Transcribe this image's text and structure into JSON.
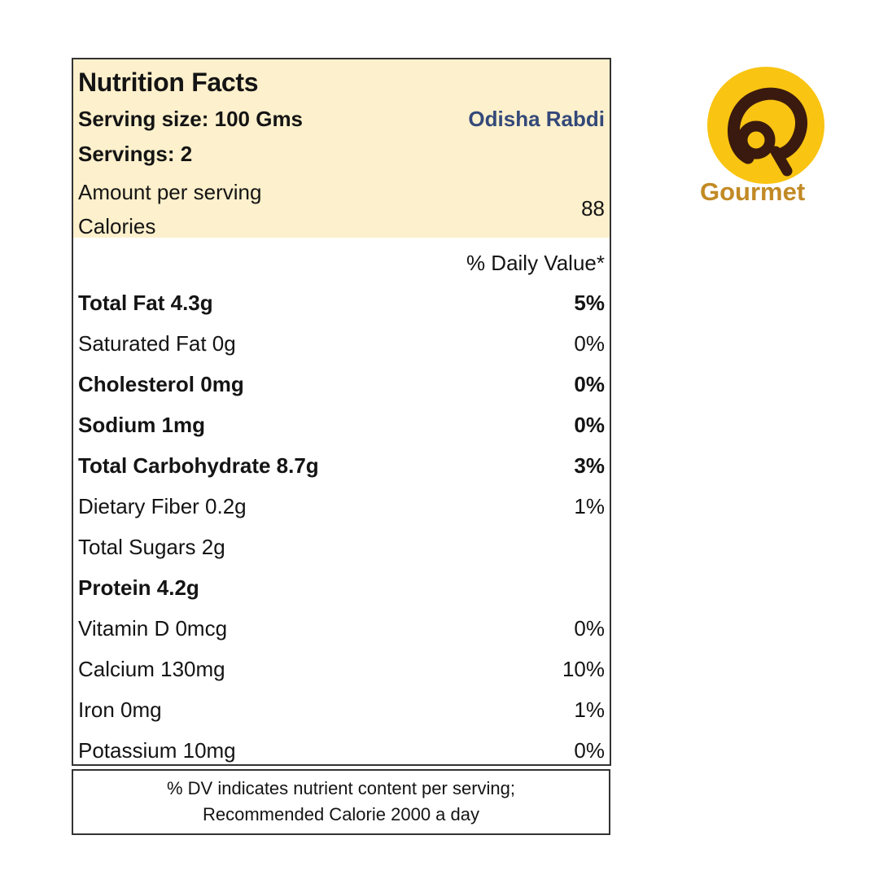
{
  "label": {
    "title": "Nutrition Facts",
    "serving_size": "Serving size: 100 Gms",
    "product_name": "Odisha Rabdi",
    "servings": "Servings: 2",
    "amount_per_serving": "Amount per serving",
    "calories_label": "Calories",
    "calories_value": "88",
    "daily_value_header": "% Daily Value*",
    "nutrients": [
      {
        "name": "Total Fat 4.3g",
        "dv": "5%",
        "bold": true
      },
      {
        "name": "Saturated Fat 0g",
        "dv": "0%",
        "bold": false
      },
      {
        "name": "Cholesterol 0mg",
        "dv": "0%",
        "bold": true
      },
      {
        "name": "Sodium 1mg",
        "dv": "0%",
        "bold": true
      },
      {
        "name": "Total Carbohydrate 8.7g",
        "dv": "3%",
        "bold": true
      },
      {
        "name": "Dietary Fiber 0.2g",
        "dv": "1%",
        "bold": false
      },
      {
        "name": "Total Sugars 2g",
        "dv": "",
        "bold": false
      },
      {
        "name": "Protein 4.2g",
        "dv": "",
        "bold": true
      },
      {
        "name": "Vitamin D 0mcg",
        "dv": "0%",
        "bold": false
      },
      {
        "name": "Calcium 130mg",
        "dv": "10%",
        "bold": false
      },
      {
        "name": "Iron 0mg",
        "dv": "1%",
        "bold": false
      },
      {
        "name": "Potassium 10mg",
        "dv": "0%",
        "bold": false
      }
    ]
  },
  "footnote": {
    "line1": "% DV indicates nutrient content per serving;",
    "line2": "Recommended Calorie 2000 a day"
  },
  "logo": {
    "text": "Gourmet",
    "icon": "gourmet-logo-icon",
    "circle_color": "#f9c412",
    "text_color": "#c28a25"
  },
  "colors": {
    "header_background": "#fdf0cc",
    "product_name": "#34497a",
    "border": "#333333"
  }
}
